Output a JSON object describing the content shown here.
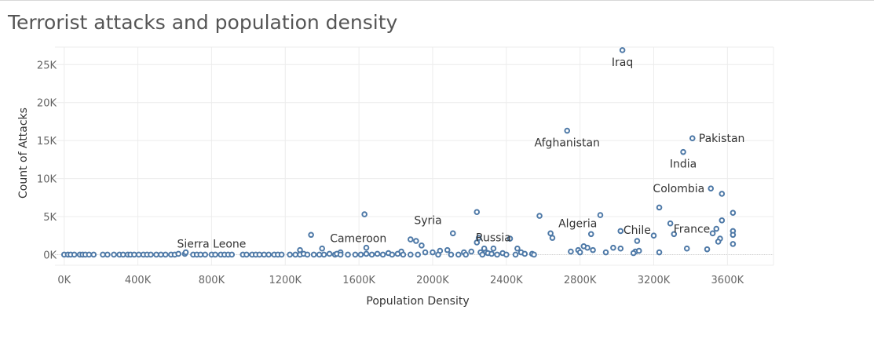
{
  "chart_data": {
    "type": "scatter",
    "title": "Terrorist attacks and population density",
    "xlabel": "Population Density",
    "ylabel": "Count of Attacks",
    "xlim": [
      -50000,
      3850000
    ],
    "ylim": [
      -1400,
      27300
    ],
    "x_ticks": [
      0,
      400000,
      800000,
      1200000,
      1600000,
      2000000,
      2400000,
      2800000,
      3200000,
      3600000
    ],
    "x_tick_labels": [
      "0K",
      "400K",
      "800K",
      "1200K",
      "1600K",
      "2000K",
      "2400K",
      "2800K",
      "3200K",
      "3600K"
    ],
    "y_ticks": [
      0,
      5000,
      10000,
      15000,
      20000,
      25000
    ],
    "y_tick_labels": [
      "0K",
      "5K",
      "10K",
      "15K",
      "20K",
      "25K"
    ],
    "grid": true,
    "series_color": "#4e79a7",
    "points": [
      [
        3030000,
        26900
      ],
      [
        2730000,
        16300
      ],
      [
        3410000,
        15300
      ],
      [
        3360000,
        13500
      ],
      [
        3510000,
        8700
      ],
      [
        3570000,
        8000
      ],
      [
        3230000,
        6200
      ],
      [
        3630000,
        5500
      ],
      [
        1630000,
        5300
      ],
      [
        2240000,
        5600
      ],
      [
        2580000,
        5100
      ],
      [
        2910000,
        5200
      ],
      [
        3290000,
        4100
      ],
      [
        3570000,
        4500
      ],
      [
        3020000,
        3100
      ],
      [
        3630000,
        3100
      ],
      [
        3540000,
        3400
      ],
      [
        3310000,
        2700
      ],
      [
        3520000,
        2800
      ],
      [
        3630000,
        2600
      ],
      [
        3200000,
        2500
      ],
      [
        2860000,
        2700
      ],
      [
        3110000,
        1800
      ],
      [
        2640000,
        2800
      ],
      [
        2650000,
        2200
      ],
      [
        2110000,
        2800
      ],
      [
        1340000,
        2600
      ],
      [
        2250000,
        2200
      ],
      [
        2420000,
        2100
      ],
      [
        3560000,
        2100
      ],
      [
        3550000,
        1700
      ],
      [
        3630000,
        1400
      ],
      [
        1880000,
        2000
      ],
      [
        1910000,
        1800
      ],
      [
        2240000,
        1600
      ],
      [
        1940000,
        1200
      ],
      [
        2460000,
        800
      ],
      [
        2280000,
        800
      ],
      [
        2330000,
        800
      ],
      [
        2840000,
        900
      ],
      [
        2820000,
        1100
      ],
      [
        2980000,
        900
      ],
      [
        2750000,
        400
      ],
      [
        2790000,
        600
      ],
      [
        2800000,
        300
      ],
      [
        2870000,
        600
      ],
      [
        2940000,
        300
      ],
      [
        3020000,
        800
      ],
      [
        3100000,
        400
      ],
      [
        3120000,
        500
      ],
      [
        3090000,
        200
      ],
      [
        3230000,
        300
      ],
      [
        3380000,
        800
      ],
      [
        3490000,
        700
      ],
      [
        1400000,
        800
      ],
      [
        1640000,
        900
      ],
      [
        1280000,
        600
      ],
      [
        1830000,
        400
      ],
      [
        2040000,
        500
      ],
      [
        2080000,
        600
      ],
      [
        2260000,
        300
      ],
      [
        1500000,
        300
      ],
      [
        1760000,
        200
      ],
      [
        1960000,
        300
      ],
      [
        2000000,
        300
      ],
      [
        2170000,
        300
      ],
      [
        2210000,
        400
      ],
      [
        2290000,
        300
      ],
      [
        2300000,
        200
      ],
      [
        2380000,
        200
      ],
      [
        2480000,
        300
      ],
      [
        2540000,
        100
      ],
      [
        0,
        0
      ],
      [
        20000,
        0
      ],
      [
        35000,
        0
      ],
      [
        55000,
        0
      ],
      [
        85000,
        0
      ],
      [
        100000,
        0
      ],
      [
        115000,
        0
      ],
      [
        135000,
        0
      ],
      [
        160000,
        0
      ],
      [
        210000,
        0
      ],
      [
        235000,
        0
      ],
      [
        270000,
        0
      ],
      [
        300000,
        0
      ],
      [
        320000,
        0
      ],
      [
        345000,
        0
      ],
      [
        360000,
        0
      ],
      [
        380000,
        0
      ],
      [
        405000,
        0
      ],
      [
        430000,
        0
      ],
      [
        450000,
        0
      ],
      [
        470000,
        0
      ],
      [
        500000,
        0
      ],
      [
        525000,
        0
      ],
      [
        550000,
        0
      ],
      [
        580000,
        0
      ],
      [
        600000,
        0
      ],
      [
        620000,
        100
      ],
      [
        655000,
        100
      ],
      [
        660000,
        300
      ],
      [
        700000,
        0
      ],
      [
        720000,
        0
      ],
      [
        740000,
        0
      ],
      [
        765000,
        0
      ],
      [
        800000,
        0
      ],
      [
        820000,
        0
      ],
      [
        850000,
        0
      ],
      [
        870000,
        0
      ],
      [
        890000,
        0
      ],
      [
        910000,
        0
      ],
      [
        970000,
        0
      ],
      [
        990000,
        0
      ],
      [
        1020000,
        0
      ],
      [
        1040000,
        0
      ],
      [
        1060000,
        0
      ],
      [
        1085000,
        0
      ],
      [
        1110000,
        0
      ],
      [
        1140000,
        0
      ],
      [
        1160000,
        0
      ],
      [
        1180000,
        0
      ],
      [
        1225000,
        0
      ],
      [
        1255000,
        0
      ],
      [
        1280000,
        0
      ],
      [
        1300000,
        100
      ],
      [
        1320000,
        0
      ],
      [
        1355000,
        0
      ],
      [
        1385000,
        0
      ],
      [
        1410000,
        0
      ],
      [
        1440000,
        100
      ],
      [
        1470000,
        0
      ],
      [
        1480000,
        100
      ],
      [
        1500000,
        0
      ],
      [
        1540000,
        0
      ],
      [
        1580000,
        0
      ],
      [
        1610000,
        0
      ],
      [
        1640000,
        100
      ],
      [
        1670000,
        0
      ],
      [
        1700000,
        100
      ],
      [
        1730000,
        0
      ],
      [
        1780000,
        0
      ],
      [
        1810000,
        100
      ],
      [
        1840000,
        0
      ],
      [
        1880000,
        0
      ],
      [
        1920000,
        0
      ],
      [
        2030000,
        0
      ],
      [
        2100000,
        0
      ],
      [
        2140000,
        0
      ],
      [
        2180000,
        0
      ],
      [
        2270000,
        0
      ],
      [
        2320000,
        100
      ],
      [
        2350000,
        0
      ],
      [
        2400000,
        0
      ],
      [
        2450000,
        0
      ],
      [
        2500000,
        100
      ],
      [
        2550000,
        0
      ]
    ],
    "annotations": [
      {
        "label": "Iraq",
        "x": 3030000,
        "y": 26900,
        "pos": "below"
      },
      {
        "label": "Afghanistan",
        "x": 2730000,
        "y": 16300,
        "pos": "below"
      },
      {
        "label": "Pakistan",
        "x": 3410000,
        "y": 15300,
        "pos": "right"
      },
      {
        "label": "India",
        "x": 3360000,
        "y": 13500,
        "pos": "below"
      },
      {
        "label": "Colombia",
        "x": 3510000,
        "y": 8700,
        "pos": "left"
      },
      {
        "label": "Syria",
        "x": 2110000,
        "y": 2800,
        "pos": "above-left"
      },
      {
        "label": "Russia",
        "x": 2330000,
        "y": 800,
        "pos": "above"
      },
      {
        "label": "Algeria",
        "x": 2640000,
        "y": 2800,
        "pos": "above-right"
      },
      {
        "label": "Chile",
        "x": 3110000,
        "y": 1800,
        "pos": "above"
      },
      {
        "label": "France",
        "x": 3540000,
        "y": 3400,
        "pos": "left"
      },
      {
        "label": "Cameroon",
        "x": 1400000,
        "y": 800,
        "pos": "above-right"
      },
      {
        "label": "Sierra Leone",
        "x": 800000,
        "y": 0,
        "pos": "above"
      }
    ]
  }
}
